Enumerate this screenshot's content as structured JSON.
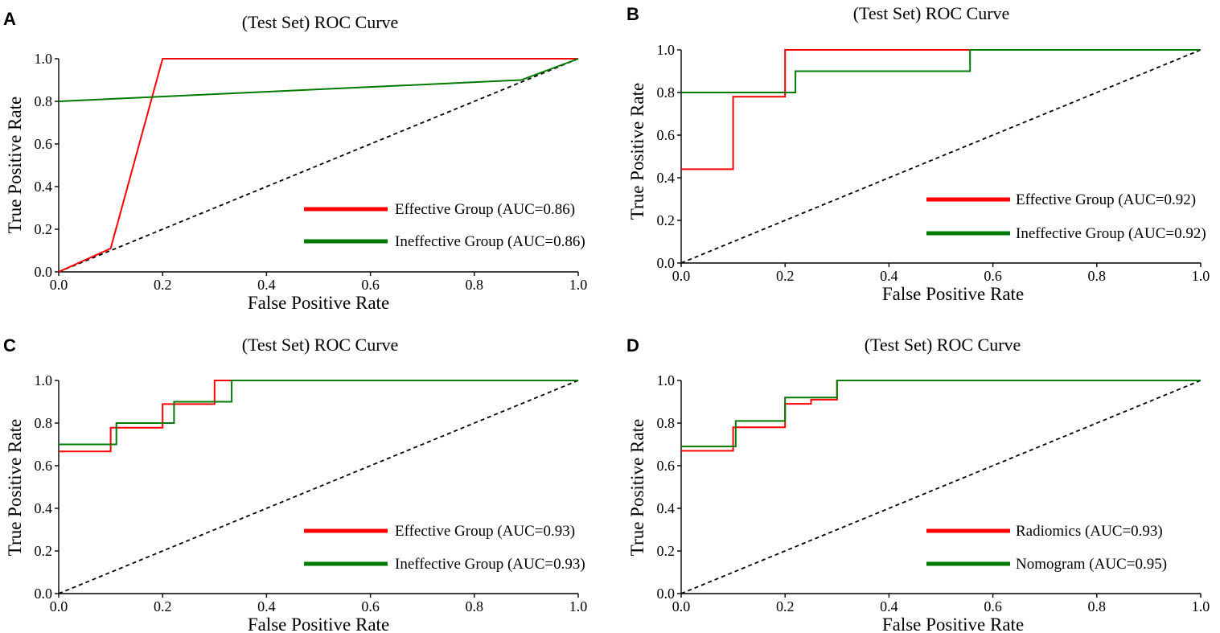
{
  "chart_data": [
    {
      "panel": "A",
      "type": "line",
      "title": "(Test Set) ROC Curve",
      "xlabel": "False Positive Rate",
      "ylabel": "True Positive Rate",
      "xlim": [
        0,
        1
      ],
      "ylim": [
        0,
        1
      ],
      "xticks": [
        "0.0",
        "0.2",
        "0.4",
        "0.6",
        "0.8",
        "1.0"
      ],
      "yticks": [
        "0.0",
        "0.2",
        "0.4",
        "0.6",
        "0.8",
        "1.0"
      ],
      "legend_position": "lower-right",
      "series": [
        {
          "name": "Effective Group (AUC=0.86)",
          "color": "#ff0000",
          "x": [
            0,
            0.1,
            0.2,
            1.0
          ],
          "y": [
            0,
            0.11,
            1.0,
            1.0
          ]
        },
        {
          "name": "Ineffective Group (AUC=0.86)",
          "color": "#007a00",
          "x": [
            0,
            0.89,
            1.0
          ],
          "y": [
            0.8,
            0.9,
            1.0
          ]
        }
      ],
      "reference_line": {
        "x": [
          0,
          1
        ],
        "y": [
          0,
          1
        ],
        "style": "dashed",
        "color": "#000000"
      }
    },
    {
      "panel": "B",
      "type": "line",
      "title": "(Test Set) ROC Curve",
      "xlabel": "False Positive Rate",
      "ylabel": "True Positive Rate",
      "xlim": [
        0,
        1
      ],
      "ylim": [
        0,
        1
      ],
      "xticks": [
        "0.0",
        "0.2",
        "0.4",
        "0.6",
        "0.8",
        "1.0"
      ],
      "yticks": [
        "0.0",
        "0.2",
        "0.4",
        "0.6",
        "0.8",
        "1.0"
      ],
      "legend_position": "lower-right",
      "series": [
        {
          "name": "Effective Group (AUC=0.92)",
          "color": "#ff0000",
          "x": [
            0,
            0.1,
            0.1,
            0.2,
            0.2,
            1.0
          ],
          "y": [
            0.44,
            0.44,
            0.78,
            0.78,
            1.0,
            1.0
          ]
        },
        {
          "name": "Ineffective Group (AUC=0.92)",
          "color": "#007a00",
          "x": [
            0,
            0.22,
            0.22,
            0.556,
            0.556,
            1.0
          ],
          "y": [
            0.8,
            0.8,
            0.9,
            0.9,
            1.0,
            1.0
          ]
        }
      ],
      "reference_line": {
        "x": [
          0,
          1
        ],
        "y": [
          0,
          1
        ],
        "style": "dashed",
        "color": "#000000"
      }
    },
    {
      "panel": "C",
      "type": "line",
      "title": "(Test Set) ROC Curve",
      "xlabel": "False Positive Rate",
      "ylabel": "True Positive Rate",
      "xlim": [
        0,
        1
      ],
      "ylim": [
        0,
        1
      ],
      "xticks": [
        "0.0",
        "0.2",
        "0.4",
        "0.6",
        "0.8",
        "1.0"
      ],
      "yticks": [
        "0.0",
        "0.2",
        "0.4",
        "0.6",
        "0.8",
        "1.0"
      ],
      "legend_position": "lower-right",
      "series": [
        {
          "name": "Effective Group (AUC=0.93)",
          "color": "#ff0000",
          "x": [
            0,
            0.1,
            0.1,
            0.2,
            0.2,
            0.3,
            0.3,
            1.0
          ],
          "y": [
            0.667,
            0.667,
            0.778,
            0.778,
            0.889,
            0.889,
            1.0,
            1.0
          ]
        },
        {
          "name": "Ineffective Group (AUC=0.93)",
          "color": "#007a00",
          "x": [
            0,
            0.111,
            0.111,
            0.222,
            0.222,
            0.333,
            0.333,
            1.0
          ],
          "y": [
            0.7,
            0.7,
            0.8,
            0.8,
            0.9,
            0.9,
            1.0,
            1.0
          ]
        }
      ],
      "reference_line": {
        "x": [
          0,
          1
        ],
        "y": [
          0,
          1
        ],
        "style": "dashed",
        "color": "#000000"
      }
    },
    {
      "panel": "D",
      "type": "line",
      "title": "(Test Set) ROC Curve",
      "xlabel": "False Positive Rate",
      "ylabel": "True Positive Rate",
      "xlim": [
        0,
        1
      ],
      "ylim": [
        0,
        1
      ],
      "xticks": [
        "0.0",
        "0.2",
        "0.4",
        "0.6",
        "0.8",
        "1.0"
      ],
      "yticks": [
        "0.0",
        "0.2",
        "0.4",
        "0.6",
        "0.8",
        "1.0"
      ],
      "legend_position": "lower-right",
      "series": [
        {
          "name": "Radiomics (AUC=0.93)",
          "color": "#ff0000",
          "x": [
            0,
            0.1,
            0.1,
            0.2,
            0.2,
            0.25,
            0.25,
            0.3,
            0.3,
            1.0
          ],
          "y": [
            0.67,
            0.67,
            0.78,
            0.78,
            0.89,
            0.89,
            0.91,
            0.91,
            1.0,
            1.0
          ]
        },
        {
          "name": "Nomogram (AUC=0.95)",
          "color": "#007a00",
          "x": [
            0,
            0.105,
            0.105,
            0.2,
            0.2,
            0.3,
            0.3,
            1.0
          ],
          "y": [
            0.69,
            0.69,
            0.81,
            0.81,
            0.92,
            0.92,
            1.0,
            1.0
          ]
        }
      ],
      "reference_line": {
        "x": [
          0,
          1
        ],
        "y": [
          0,
          1
        ],
        "style": "dashed",
        "color": "#000000"
      }
    }
  ]
}
